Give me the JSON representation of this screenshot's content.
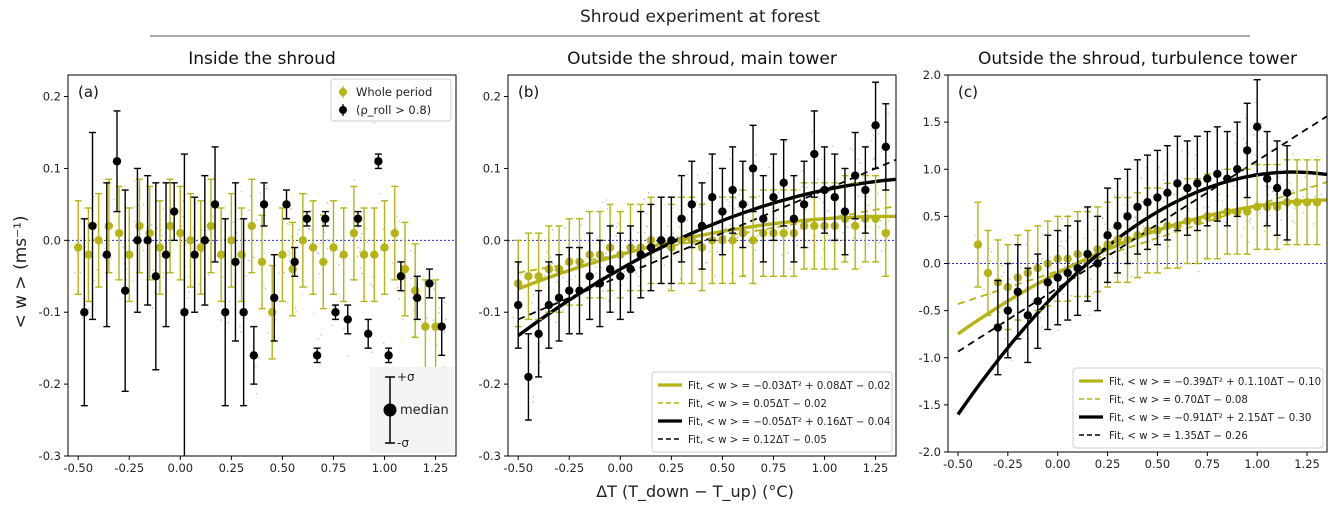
{
  "figure": {
    "main_title": "Shroud experiment at forest",
    "ylabel": "< w > (ms⁻¹)",
    "xlabel": "ΔT (T_down − T_up) (°C)"
  },
  "colors": {
    "olive": "#b5b414",
    "black": "#000000",
    "zero_line": "#2a2ae0",
    "scatter": "#9a9a9a"
  },
  "chart_data": [
    {
      "type": "scatter",
      "panel_label": "(a)",
      "title": "Inside the shroud",
      "xlim": [
        -0.55,
        1.35
      ],
      "ylim": [
        -0.3,
        0.23
      ],
      "xticks": [
        -0.5,
        -0.25,
        0.0,
        0.25,
        0.5,
        0.75,
        1.0,
        1.25
      ],
      "yticks": [
        -0.3,
        -0.2,
        -0.1,
        0.0,
        0.1,
        0.2
      ],
      "zero_line": true,
      "legend": {
        "placement": "top-right",
        "entries": [
          "Whole period",
          "(ρ_roll > 0.8)"
        ]
      },
      "sigma_key": {
        "plus": "+σ",
        "median": "median",
        "minus": "-σ"
      },
      "series": [
        {
          "name": "Whole period",
          "color": "#b5b414",
          "err": 0.065,
          "x": [
            -0.5,
            -0.45,
            -0.4,
            -0.35,
            -0.3,
            -0.25,
            -0.2,
            -0.15,
            -0.1,
            -0.05,
            0.0,
            0.05,
            0.1,
            0.15,
            0.2,
            0.25,
            0.3,
            0.35,
            0.4,
            0.45,
            0.5,
            0.55,
            0.6,
            0.65,
            0.7,
            0.75,
            0.8,
            0.85,
            0.9,
            0.95,
            1.0,
            1.05,
            1.1,
            1.15,
            1.2,
            1.25
          ],
          "y": [
            -0.01,
            -0.02,
            0.0,
            0.02,
            0.01,
            -0.02,
            0.02,
            0.01,
            -0.01,
            0.02,
            0.01,
            0.0,
            -0.01,
            0.02,
            -0.02,
            0.0,
            -0.02,
            0.02,
            -0.03,
            -0.1,
            -0.02,
            -0.04,
            0.0,
            -0.01,
            -0.03,
            -0.01,
            -0.02,
            0.01,
            -0.02,
            -0.02,
            -0.01,
            0.01,
            -0.04,
            -0.07,
            -0.12,
            -0.12
          ]
        },
        {
          "name": "(ρ_roll > 0.8)",
          "color": "#000000",
          "x": [
            -0.47,
            -0.43,
            -0.36,
            -0.31,
            -0.27,
            -0.21,
            -0.16,
            -0.12,
            -0.07,
            -0.03,
            0.02,
            0.07,
            0.12,
            0.17,
            0.22,
            0.27,
            0.31,
            0.36,
            0.41,
            0.46,
            0.52,
            0.56,
            0.62,
            0.67,
            0.71,
            0.76,
            0.82,
            0.87,
            0.92,
            0.97,
            1.02,
            1.08,
            1.16,
            1.22,
            1.28
          ],
          "y": [
            -0.1,
            0.02,
            -0.02,
            0.11,
            -0.07,
            0.0,
            0.0,
            -0.05,
            -0.02,
            0.04,
            -0.1,
            -0.02,
            0.0,
            0.05,
            -0.1,
            -0.03,
            -0.1,
            -0.16,
            0.05,
            -0.08,
            0.05,
            -0.03,
            0.03,
            -0.16,
            0.03,
            -0.1,
            -0.11,
            0.03,
            -0.13,
            0.11,
            -0.16,
            -0.05,
            -0.08,
            -0.06,
            -0.12
          ],
          "err": [
            0.13,
            0.13,
            0.1,
            0.07,
            0.14,
            0.1,
            0.09,
            0.13,
            0.1,
            0.04,
            0.22,
            0.08,
            0.09,
            0.08,
            0.13,
            0.11,
            0.13,
            0.04,
            0.03,
            0.06,
            0.02,
            0.02,
            0.01,
            0.01,
            0.01,
            0.01,
            0.02,
            0.01,
            0.02,
            0.01,
            0.01,
            0.02,
            0.03,
            0.02,
            0.04
          ]
        }
      ]
    },
    {
      "type": "scatter",
      "panel_label": "(b)",
      "title": "Outside the shroud, main tower",
      "xlim": [
        -0.55,
        1.35
      ],
      "ylim": [
        -0.3,
        0.23
      ],
      "xticks": [
        -0.5,
        -0.25,
        0.0,
        0.25,
        0.5,
        0.75,
        1.0,
        1.25
      ],
      "yticks": [
        -0.3,
        -0.2,
        -0.1,
        0.0,
        0.1,
        0.2
      ],
      "zero_line": true,
      "legend": {
        "placement": "bottom-right"
      },
      "fits": [
        {
          "label": "Fit, < w > = −0.03ΔT² + 0.08ΔT − 0.02",
          "coef": [
            -0.03,
            0.08,
            -0.02
          ],
          "color": "#b5b414",
          "dashed": false
        },
        {
          "label": "Fit, < w > = 0.05ΔT − 0.02",
          "coef": [
            0,
            0.05,
            -0.02
          ],
          "color": "#b5b414",
          "dashed": true
        },
        {
          "label": "Fit, < w > = −0.05ΔT² + 0.16ΔT − 0.04",
          "coef": [
            -0.05,
            0.16,
            -0.04
          ],
          "color": "#000000",
          "dashed": false
        },
        {
          "label": "Fit, < w > = 0.12ΔT − 0.05",
          "coef": [
            0,
            0.12,
            -0.05
          ],
          "color": "#000000",
          "dashed": true
        }
      ],
      "series": [
        {
          "name": "Whole period",
          "color": "#b5b414",
          "err": 0.06,
          "x": [
            -0.5,
            -0.45,
            -0.4,
            -0.35,
            -0.3,
            -0.25,
            -0.2,
            -0.15,
            -0.1,
            -0.05,
            0.0,
            0.05,
            0.1,
            0.15,
            0.2,
            0.25,
            0.3,
            0.35,
            0.4,
            0.45,
            0.5,
            0.55,
            0.6,
            0.65,
            0.7,
            0.75,
            0.8,
            0.85,
            0.9,
            0.95,
            1.0,
            1.05,
            1.1,
            1.15,
            1.2,
            1.25,
            1.3
          ],
          "y": [
            -0.06,
            -0.05,
            -0.05,
            -0.04,
            -0.04,
            -0.03,
            -0.03,
            -0.02,
            -0.02,
            -0.01,
            -0.02,
            -0.01,
            -0.01,
            0.0,
            0.0,
            -0.01,
            0.0,
            0.0,
            -0.01,
            0.0,
            0.0,
            0.0,
            0.01,
            0.0,
            0.01,
            0.01,
            0.01,
            0.01,
            0.02,
            0.02,
            0.02,
            0.02,
            0.03,
            0.02,
            0.03,
            0.03,
            0.01
          ]
        },
        {
          "name": "(ρ_roll > 0.8)",
          "color": "#000000",
          "err": 0.06,
          "x": [
            -0.5,
            -0.45,
            -0.4,
            -0.35,
            -0.3,
            -0.25,
            -0.2,
            -0.15,
            -0.1,
            -0.05,
            0.0,
            0.05,
            0.1,
            0.15,
            0.2,
            0.25,
            0.3,
            0.35,
            0.4,
            0.45,
            0.5,
            0.55,
            0.6,
            0.65,
            0.7,
            0.75,
            0.8,
            0.85,
            0.9,
            0.95,
            1.0,
            1.05,
            1.1,
            1.15,
            1.2,
            1.25,
            1.3
          ],
          "y": [
            -0.09,
            -0.19,
            -0.13,
            -0.09,
            -0.08,
            -0.07,
            -0.07,
            -0.05,
            -0.06,
            -0.04,
            -0.05,
            -0.04,
            -0.02,
            -0.01,
            0.0,
            0.0,
            0.03,
            0.05,
            0.02,
            0.06,
            0.04,
            0.07,
            0.05,
            0.1,
            0.03,
            0.06,
            0.08,
            0.03,
            0.05,
            0.12,
            0.07,
            0.06,
            0.04,
            0.09,
            0.07,
            0.16,
            0.13
          ]
        }
      ]
    },
    {
      "type": "scatter",
      "panel_label": "(c)",
      "title": "Outside the shroud, turbulence tower",
      "xlim": [
        -0.55,
        1.35
      ],
      "ylim": [
        -2.0,
        2.0
      ],
      "xticks": [
        -0.5,
        -0.25,
        0.0,
        0.25,
        0.5,
        0.75,
        1.0,
        1.25
      ],
      "yticks": [
        -2.0,
        -1.5,
        -1.0,
        -0.5,
        0.0,
        0.5,
        1.0,
        1.5,
        2.0
      ],
      "zero_line": true,
      "legend": {
        "placement": "bottom-right"
      },
      "fits": [
        {
          "label": "Fit, < w > = −0.39ΔT² + 0.1.10ΔT − 0.10",
          "coef": [
            -0.39,
            1.1,
            -0.1
          ],
          "color": "#b5b414",
          "dashed": false
        },
        {
          "label": "Fit, < w > = 0.70ΔT − 0.08",
          "coef": [
            0,
            0.7,
            -0.08
          ],
          "color": "#b5b414",
          "dashed": true
        },
        {
          "label": "Fit, < w > = −0.91ΔT² + 2.15ΔT − 0.30",
          "coef": [
            -0.91,
            2.15,
            -0.3
          ],
          "color": "#000000",
          "dashed": false
        },
        {
          "label": "Fit, < w > = 1.35ΔT − 0.26",
          "coef": [
            0,
            1.35,
            -0.26
          ],
          "color": "#000000",
          "dashed": true
        }
      ],
      "series": [
        {
          "name": "Whole period",
          "color": "#b5b414",
          "err": 0.45,
          "x": [
            -0.4,
            -0.35,
            -0.3,
            -0.25,
            -0.2,
            -0.15,
            -0.1,
            -0.05,
            0.0,
            0.05,
            0.1,
            0.15,
            0.2,
            0.25,
            0.3,
            0.35,
            0.4,
            0.45,
            0.5,
            0.55,
            0.6,
            0.65,
            0.7,
            0.75,
            0.8,
            0.85,
            0.9,
            0.95,
            1.0,
            1.05,
            1.1,
            1.15,
            1.2,
            1.25,
            1.3
          ],
          "y": [
            0.2,
            -0.1,
            -0.2,
            -0.25,
            -0.15,
            -0.1,
            -0.05,
            0.0,
            0.05,
            0.05,
            0.1,
            0.1,
            0.15,
            0.2,
            0.25,
            0.25,
            0.3,
            0.35,
            0.35,
            0.4,
            0.4,
            0.45,
            0.45,
            0.5,
            0.5,
            0.55,
            0.55,
            0.55,
            0.6,
            0.6,
            0.6,
            0.65,
            0.65,
            0.65,
            0.65
          ]
        },
        {
          "name": "(ρ_roll > 0.8)",
          "color": "#000000",
          "err": 0.5,
          "x": [
            -0.3,
            -0.25,
            -0.2,
            -0.15,
            -0.1,
            -0.05,
            0.0,
            0.05,
            0.1,
            0.15,
            0.2,
            0.25,
            0.3,
            0.35,
            0.4,
            0.45,
            0.5,
            0.55,
            0.6,
            0.65,
            0.7,
            0.75,
            0.8,
            0.85,
            0.9,
            0.95,
            1.0,
            1.05,
            1.1,
            1.15
          ],
          "y": [
            -0.68,
            -0.5,
            -0.3,
            -0.55,
            -0.4,
            -0.2,
            -0.15,
            -0.1,
            -0.05,
            0.1,
            0.0,
            0.3,
            0.4,
            0.5,
            0.6,
            0.65,
            0.7,
            0.75,
            0.85,
            0.8,
            0.85,
            0.9,
            0.95,
            0.9,
            1.0,
            1.2,
            1.45,
            0.9,
            0.8,
            0.75
          ]
        }
      ]
    }
  ]
}
